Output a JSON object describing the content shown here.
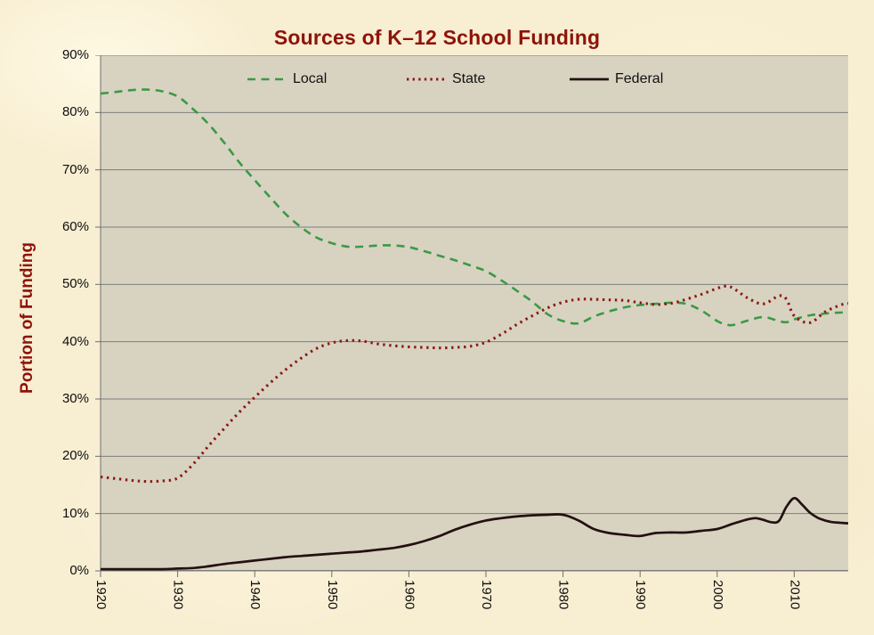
{
  "title": "Sources of K–12 School Funding",
  "colors": {
    "background": "#f8eed2",
    "plot_background": "#d8d3c1",
    "gridline": "#7d7d7d",
    "axis_line": "#6e6e6e",
    "title_text": "#8e1309",
    "tick_text": "#0d0d0d",
    "local_line": "#3a9a46",
    "state_line": "#8e1712",
    "federal_line": "#241112"
  },
  "chart_data": {
    "type": "line",
    "title": "Sources of K–12 School Funding",
    "xlabel": "",
    "ylabel": "Portion of Funding",
    "xlim": [
      1920,
      2017
    ],
    "ylim": [
      0,
      90
    ],
    "grid": true,
    "legend_position": "top-inside",
    "x_ticks": [
      1920,
      1930,
      1940,
      1950,
      1960,
      1970,
      1980,
      1990,
      2000,
      2010
    ],
    "x_tick_labels": [
      "1920",
      "1930",
      "1940",
      "1950",
      "1960",
      "1970",
      "1980",
      "1990",
      "2000",
      "2010"
    ],
    "y_ticks": [
      0,
      10,
      20,
      30,
      40,
      50,
      60,
      70,
      80,
      90
    ],
    "y_tick_labels": [
      "0%",
      "10%",
      "20%",
      "30%",
      "40%",
      "50%",
      "60%",
      "70%",
      "80%",
      "90%"
    ],
    "series": [
      {
        "name": "Local",
        "color": "#3a9a46",
        "style": "dashed",
        "x": [
          1920,
          1922,
          1924,
          1926,
          1928,
          1930,
          1932,
          1934,
          1936,
          1938,
          1940,
          1942,
          1944,
          1946,
          1948,
          1950,
          1952,
          1954,
          1956,
          1958,
          1960,
          1962,
          1964,
          1966,
          1968,
          1970,
          1972,
          1974,
          1976,
          1978,
          1980,
          1982,
          1984,
          1986,
          1988,
          1990,
          1992,
          1994,
          1996,
          1998,
          2000,
          2001,
          2002,
          2004,
          2006,
          2008,
          2009,
          2010,
          2012,
          2014,
          2016,
          2017
        ],
        "y": [
          83.3,
          83.6,
          83.9,
          84.0,
          83.7,
          82.8,
          80.6,
          78.0,
          74.8,
          71.3,
          68.2,
          65.2,
          62.3,
          60.0,
          58.2,
          57.2,
          56.6,
          56.6,
          56.8,
          56.8,
          56.5,
          55.8,
          55.0,
          54.2,
          53.3,
          52.3,
          50.7,
          48.9,
          47.0,
          44.8,
          43.6,
          43.2,
          44.4,
          45.3,
          46.0,
          46.4,
          46.6,
          46.8,
          46.6,
          45.4,
          43.6,
          43.1,
          42.9,
          43.7,
          44.3,
          43.6,
          43.4,
          43.9,
          44.6,
          44.9,
          45.1,
          45.0
        ]
      },
      {
        "name": "State",
        "color": "#8e1712",
        "style": "dotted",
        "x": [
          1920,
          1922,
          1924,
          1926,
          1928,
          1930,
          1932,
          1934,
          1936,
          1938,
          1940,
          1942,
          1944,
          1946,
          1948,
          1950,
          1952,
          1954,
          1956,
          1958,
          1960,
          1962,
          1964,
          1966,
          1968,
          1970,
          1972,
          1974,
          1976,
          1978,
          1980,
          1982,
          1984,
          1986,
          1988,
          1990,
          1992,
          1994,
          1996,
          1998,
          2000,
          2001,
          2002,
          2004,
          2006,
          2008,
          2009,
          2010,
          2012,
          2014,
          2016,
          2017
        ],
        "y": [
          16.4,
          16.1,
          15.8,
          15.6,
          15.7,
          16.2,
          18.6,
          21.8,
          24.8,
          27.7,
          30.3,
          32.8,
          35.1,
          37.1,
          38.8,
          39.8,
          40.2,
          40.1,
          39.6,
          39.3,
          39.1,
          39.0,
          38.9,
          39.0,
          39.2,
          39.9,
          41.3,
          43.0,
          44.5,
          45.9,
          46.9,
          47.4,
          47.4,
          47.3,
          47.2,
          46.8,
          46.5,
          46.7,
          47.4,
          48.3,
          49.3,
          49.7,
          49.4,
          47.6,
          46.6,
          48.0,
          47.4,
          44.5,
          43.3,
          45.2,
          46.4,
          46.7
        ]
      },
      {
        "name": "Federal",
        "color": "#241112",
        "style": "solid",
        "x": [
          1920,
          1924,
          1928,
          1930,
          1932,
          1934,
          1936,
          1938,
          1940,
          1942,
          1944,
          1946,
          1948,
          1950,
          1952,
          1954,
          1956,
          1958,
          1960,
          1962,
          1964,
          1966,
          1968,
          1970,
          1972,
          1974,
          1976,
          1978,
          1980,
          1982,
          1984,
          1986,
          1988,
          1990,
          1992,
          1994,
          1996,
          1998,
          2000,
          2002,
          2004,
          2005,
          2006,
          2007,
          2008,
          2009,
          2010,
          2011,
          2012,
          2013,
          2014,
          2015,
          2016,
          2017
        ],
        "y": [
          0.3,
          0.3,
          0.3,
          0.4,
          0.5,
          0.8,
          1.2,
          1.5,
          1.8,
          2.1,
          2.4,
          2.6,
          2.8,
          3.0,
          3.2,
          3.4,
          3.7,
          4.0,
          4.5,
          5.2,
          6.1,
          7.2,
          8.1,
          8.8,
          9.2,
          9.5,
          9.7,
          9.8,
          9.8,
          8.8,
          7.3,
          6.6,
          6.3,
          6.1,
          6.6,
          6.7,
          6.7,
          7.0,
          7.3,
          8.2,
          9.0,
          9.2,
          8.9,
          8.5,
          8.7,
          11.2,
          12.7,
          11.6,
          10.2,
          9.3,
          8.8,
          8.5,
          8.4,
          8.3
        ]
      }
    ]
  }
}
